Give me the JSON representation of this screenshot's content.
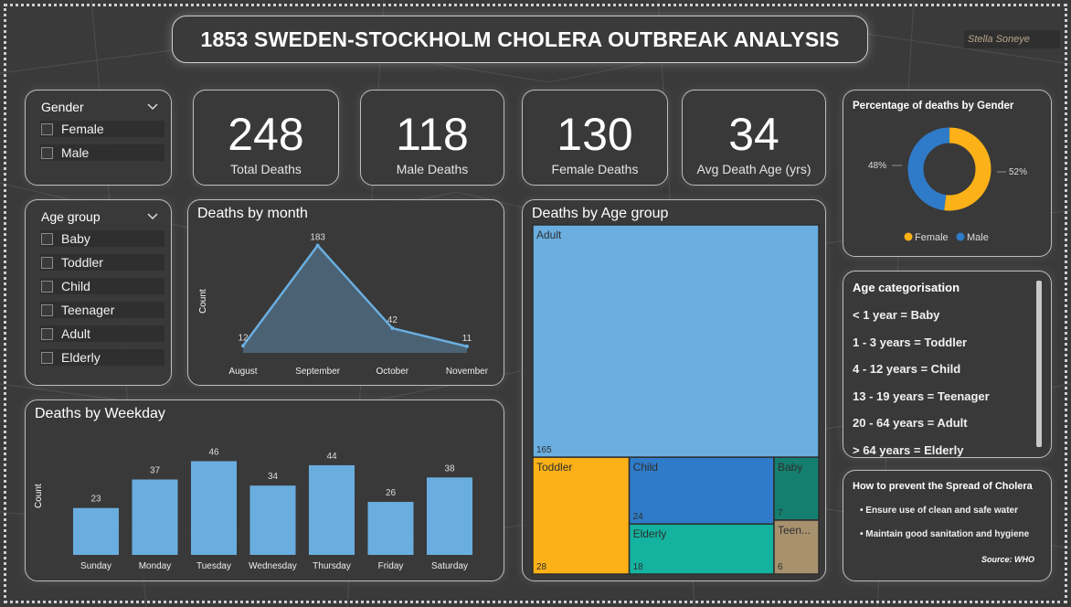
{
  "title": "1853 SWEDEN-STOCKHOLM CHOLERA OUTBREAK ANALYSIS",
  "author": "Stella Soneye",
  "colors": {
    "bar": "#6aaee0",
    "female": "#fbb117",
    "male": "#2f7bc9",
    "background": "#3a3a3a"
  },
  "gender_slicer": {
    "title": "Gender",
    "items": [
      "Female",
      "Male"
    ]
  },
  "age_slicer": {
    "title": "Age group",
    "items": [
      "Baby",
      "Toddler",
      "Child",
      "Teenager",
      "Adult",
      "Elderly"
    ]
  },
  "kpis": [
    {
      "value": "248",
      "label": "Total Deaths"
    },
    {
      "value": "118",
      "label": "Male Deaths"
    },
    {
      "value": "130",
      "label": "Female Deaths"
    },
    {
      "value": "34",
      "label": "Avg Death Age (yrs)"
    }
  ],
  "donut": {
    "title": "Percentage of deaths by Gender",
    "female_label": "52%",
    "male_label": "48%",
    "legend": [
      "Female",
      "Male"
    ]
  },
  "age_categorisation": {
    "title": "Age categorisation",
    "lines": [
      "< 1 year = Baby",
      "1 - 3 years = Toddler",
      "4 - 12 years = Child",
      "13 - 19 years = Teenager",
      "20 - 64 years = Adult",
      "> 64 years = Elderly"
    ]
  },
  "prevention": {
    "title": "How to prevent the Spread of Cholera",
    "items": [
      "• Ensure use of clean and safe water",
      "• Maintain good sanitation and hygiene"
    ],
    "source": "Source: WHO"
  },
  "chart_data": [
    {
      "type": "area",
      "title": "Deaths by month",
      "ylabel": "Count",
      "categories": [
        "August",
        "September",
        "October",
        "November"
      ],
      "values": [
        12,
        183,
        42,
        11
      ],
      "ylim": [
        0,
        190
      ]
    },
    {
      "type": "bar",
      "title": "Deaths by Weekday",
      "ylabel": "Count",
      "categories": [
        "Sunday",
        "Monday",
        "Tuesday",
        "Wednesday",
        "Thursday",
        "Friday",
        "Saturday"
      ],
      "values": [
        23,
        37,
        46,
        34,
        44,
        26,
        38
      ],
      "ylim": [
        0,
        48
      ]
    },
    {
      "type": "treemap",
      "title": "Deaths by Age group",
      "categories": [
        "Adult",
        "Toddler",
        "Child",
        "Elderly",
        "Baby",
        "Teen..."
      ],
      "values": [
        165,
        28,
        24,
        18,
        7,
        6
      ],
      "colors": [
        "#6aaee0",
        "#fbb117",
        "#2f7bc9",
        "#14b3a0",
        "#147f6e",
        "#a8926e"
      ]
    }
  ]
}
